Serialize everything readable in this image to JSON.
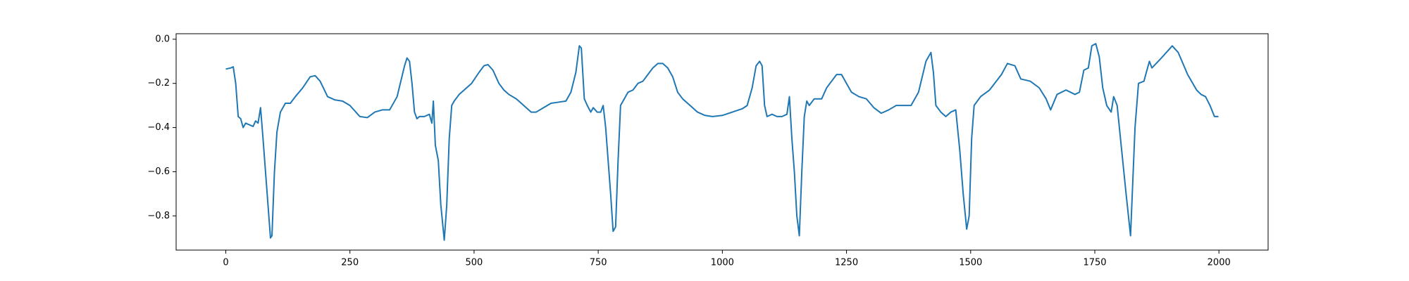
{
  "chart_data": {
    "type": "line",
    "x": [
      0,
      10,
      15,
      20,
      25,
      30,
      35,
      40,
      50,
      55,
      60,
      65,
      70,
      75,
      80,
      85,
      90,
      93,
      98,
      103,
      110,
      120,
      130,
      140,
      155,
      170,
      180,
      190,
      205,
      220,
      235,
      250,
      270,
      285,
      300,
      315,
      330,
      345,
      360,
      365,
      370,
      375,
      380,
      385,
      390,
      400,
      410,
      415,
      418,
      422,
      428,
      433,
      440,
      445,
      450,
      455,
      460,
      470,
      480,
      495,
      510,
      520,
      528,
      538,
      550,
      560,
      570,
      585,
      600,
      615,
      625,
      640,
      655,
      670,
      685,
      695,
      705,
      712,
      716,
      722,
      728,
      735,
      740,
      748,
      755,
      760,
      765,
      770,
      775,
      780,
      785,
      790,
      795,
      800,
      810,
      820,
      830,
      840,
      850,
      860,
      870,
      880,
      890,
      900,
      910,
      920,
      935,
      950,
      965,
      980,
      1000,
      1020,
      1040,
      1050,
      1060,
      1068,
      1075,
      1080,
      1085,
      1090,
      1100,
      1110,
      1120,
      1130,
      1135,
      1140,
      1145,
      1150,
      1155,
      1160,
      1165,
      1170,
      1175,
      1185,
      1200,
      1210,
      1220,
      1230,
      1240,
      1250,
      1260,
      1275,
      1290,
      1305,
      1320,
      1335,
      1350,
      1365,
      1380,
      1395,
      1410,
      1420,
      1425,
      1430,
      1440,
      1450,
      1460,
      1470,
      1478,
      1485,
      1492,
      1497,
      1502,
      1507,
      1520,
      1538,
      1562,
      1574,
      1589,
      1601,
      1620,
      1638,
      1652,
      1661,
      1674,
      1692,
      1710,
      1719,
      1728,
      1737,
      1744,
      1752,
      1759,
      1766,
      1774,
      1783,
      1788,
      1795,
      1804,
      1813,
      1822,
      1831,
      1838,
      1849,
      1855,
      1860,
      1865,
      1882,
      1906,
      1918,
      1937,
      1955,
      1964,
      1973,
      1982,
      1991,
      1999
    ],
    "series": [
      {
        "color": "#1f77b4",
        "values": [
          -0.135,
          -0.13,
          -0.125,
          -0.2,
          -0.35,
          -0.36,
          -0.4,
          -0.38,
          -0.39,
          -0.395,
          -0.37,
          -0.38,
          -0.31,
          -0.45,
          -0.6,
          -0.75,
          -0.9,
          -0.89,
          -0.6,
          -0.42,
          -0.33,
          -0.29,
          -0.29,
          -0.26,
          -0.22,
          -0.17,
          -0.165,
          -0.19,
          -0.26,
          -0.275,
          -0.28,
          -0.3,
          -0.35,
          -0.355,
          -0.33,
          -0.32,
          -0.32,
          -0.26,
          -0.12,
          -0.085,
          -0.1,
          -0.2,
          -0.33,
          -0.36,
          -0.35,
          -0.35,
          -0.34,
          -0.38,
          -0.28,
          -0.48,
          -0.55,
          -0.75,
          -0.91,
          -0.75,
          -0.45,
          -0.3,
          -0.28,
          -0.25,
          -0.23,
          -0.2,
          -0.15,
          -0.12,
          -0.115,
          -0.14,
          -0.2,
          -0.23,
          -0.25,
          -0.27,
          -0.3,
          -0.33,
          -0.33,
          -0.31,
          -0.29,
          -0.285,
          -0.28,
          -0.24,
          -0.15,
          -0.03,
          -0.04,
          -0.27,
          -0.3,
          -0.33,
          -0.31,
          -0.33,
          -0.33,
          -0.3,
          -0.4,
          -0.55,
          -0.7,
          -0.87,
          -0.85,
          -0.55,
          -0.3,
          -0.28,
          -0.24,
          -0.23,
          -0.2,
          -0.19,
          -0.16,
          -0.13,
          -0.11,
          -0.11,
          -0.13,
          -0.17,
          -0.24,
          -0.27,
          -0.3,
          -0.33,
          -0.345,
          -0.35,
          -0.345,
          -0.33,
          -0.315,
          -0.3,
          -0.22,
          -0.12,
          -0.1,
          -0.12,
          -0.3,
          -0.35,
          -0.34,
          -0.35,
          -0.35,
          -0.34,
          -0.26,
          -0.45,
          -0.6,
          -0.8,
          -0.89,
          -0.6,
          -0.35,
          -0.28,
          -0.3,
          -0.27,
          -0.27,
          -0.22,
          -0.19,
          -0.16,
          -0.16,
          -0.2,
          -0.24,
          -0.26,
          -0.27,
          -0.31,
          -0.335,
          -0.32,
          -0.3,
          -0.3,
          -0.3,
          -0.24,
          -0.1,
          -0.06,
          -0.15,
          -0.3,
          -0.33,
          -0.35,
          -0.33,
          -0.32,
          -0.5,
          -0.7,
          -0.86,
          -0.8,
          -0.45,
          -0.3,
          -0.26,
          -0.23,
          -0.16,
          -0.11,
          -0.12,
          -0.18,
          -0.19,
          -0.22,
          -0.27,
          -0.32,
          -0.25,
          -0.23,
          -0.25,
          -0.24,
          -0.14,
          -0.13,
          -0.03,
          -0.02,
          -0.08,
          -0.22,
          -0.3,
          -0.33,
          -0.26,
          -0.3,
          -0.5,
          -0.7,
          -0.89,
          -0.4,
          -0.2,
          -0.19,
          -0.14,
          -0.1,
          -0.13,
          -0.09,
          -0.03,
          -0.06,
          -0.16,
          -0.23,
          -0.25,
          -0.26,
          -0.3,
          -0.35,
          -0.35
        ]
      }
    ],
    "xlim": [
      -100,
      2099
    ],
    "ylim": [
      -0.955,
      0.025
    ],
    "xticks": [
      0,
      250,
      500,
      750,
      1000,
      1250,
      1500,
      1750,
      2000
    ],
    "yticks": [
      {
        "value": -0.8,
        "label": "−0.8"
      },
      {
        "value": -0.6,
        "label": "−0.6"
      },
      {
        "value": -0.4,
        "label": "−0.4"
      },
      {
        "value": -0.2,
        "label": "−0.2"
      },
      {
        "value": 0,
        "label": "0.0"
      }
    ]
  }
}
